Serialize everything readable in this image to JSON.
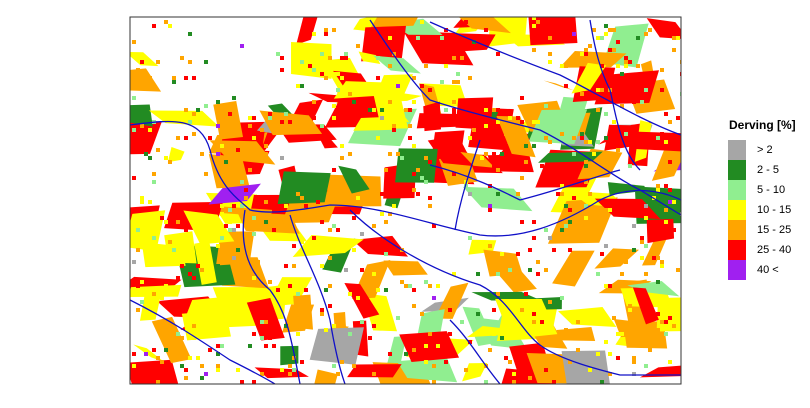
{
  "legend": {
    "title": "Derving [%]",
    "items": [
      {
        "label": "> 2",
        "color": "#a6a6a6"
      },
      {
        "label": "2 -  5",
        "color": "#228b22"
      },
      {
        "label": "5 - 10",
        "color": "#90ee90"
      },
      {
        "label": "10 - 15",
        "color": "#ffff00"
      },
      {
        "label": "15 - 25",
        "color": "#ffa500"
      },
      {
        "label": "25 - 40",
        "color": "#ff0000"
      },
      {
        "label": "40 <",
        "color": "#a020f0"
      }
    ]
  }
}
